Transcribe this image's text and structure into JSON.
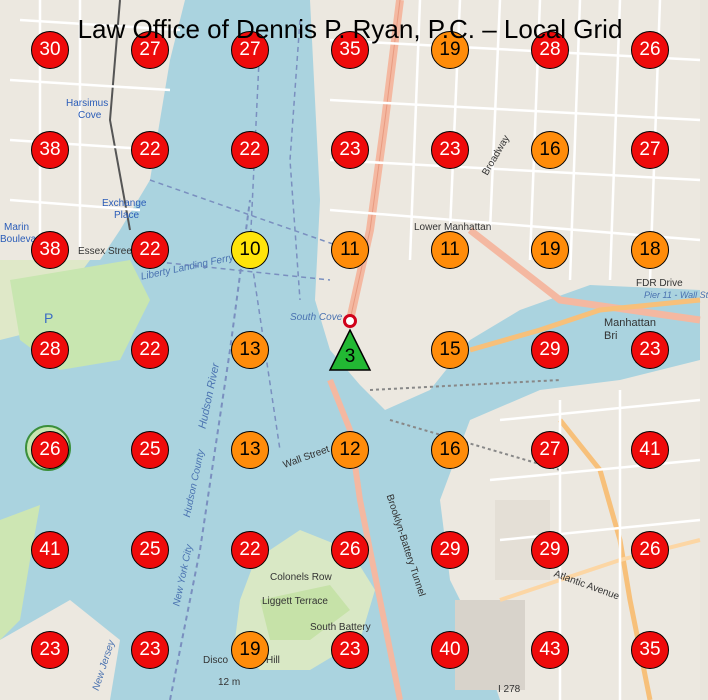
{
  "title": "Law Office of Dennis P. Ryan, P.C. – Local Grid",
  "grid": {
    "rows": [
      [
        30,
        27,
        27,
        35,
        19,
        28,
        26
      ],
      [
        38,
        22,
        22,
        23,
        23,
        16,
        27
      ],
      [
        38,
        22,
        10,
        11,
        11,
        19,
        18
      ],
      [
        28,
        22,
        13,
        3,
        15,
        29,
        23
      ],
      [
        26,
        25,
        13,
        12,
        16,
        27,
        41
      ],
      [
        41,
        25,
        22,
        26,
        29,
        29,
        26
      ],
      [
        23,
        23,
        19,
        23,
        40,
        43,
        35
      ]
    ],
    "center_value": "3"
  },
  "colors": {
    "red": "#ee0b0b",
    "orange": "#ff8c0a",
    "yellow": "#ffe40a",
    "green": "#22b833"
  },
  "map_labels": {
    "harsimus": "Harsimus",
    "cove": "Cove",
    "exchange": "Exchange",
    "place": "Place",
    "marin": "Marin",
    "boulevard": "Bouleva",
    "essex": "Essex Street",
    "lower_manhattan": "Lower Manhattan",
    "manhattan": "Manhattan",
    "bridge": "Bri",
    "fdr_drive": "FDR Drive",
    "pier": "Pier 11 - Wall St",
    "liberty_landing": "Liberty Landing Ferry",
    "hudson_river": "Hudson River",
    "hudson_county": "Hudson County",
    "new_york_city": "New York City",
    "colonels_row": "Colonels Row",
    "liggett_terrace": "Liggett Terrace",
    "south_battery": "South Battery",
    "brooklyn_battery_tunnel": "Brooklyn-Battery Tunnel",
    "atlantic_avenue": "Atlantic Avenue",
    "i278": "I 278",
    "new_jersey": "New Jersey",
    "broadway": "Broadway",
    "wall_street": "Wall Street",
    "south_cove": "South Cove",
    "parking": "P",
    "disco": "Disco",
    "hill": "Hill",
    "elevation": "12 m"
  }
}
